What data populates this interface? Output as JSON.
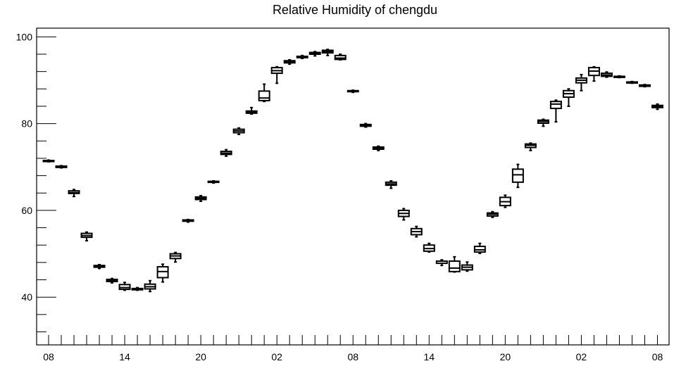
{
  "chart_data": {
    "type": "boxplot",
    "title": "Relative Humidity of chengdu",
    "xlabel": "",
    "ylabel": "",
    "ylim": [
      29,
      102
    ],
    "y_ticks": [
      40,
      60,
      80,
      100
    ],
    "x_tick_labels": [
      "08",
      "14",
      "20",
      "02",
      "08",
      "14",
      "20",
      "02",
      "08"
    ],
    "x_tick_positions": [
      0,
      6,
      12,
      18,
      24,
      30,
      36,
      42,
      48
    ],
    "grid": false,
    "colors": {
      "box": "#000000",
      "axis": "#000000",
      "background": "#ffffff"
    },
    "boxes": [
      {
        "x": 0,
        "min": 71.2,
        "q1": 71.3,
        "median": 71.4,
        "q3": 71.5,
        "max": 71.6
      },
      {
        "x": 1,
        "min": 69.8,
        "q1": 69.9,
        "median": 70.0,
        "q3": 70.2,
        "max": 70.3
      },
      {
        "x": 2,
        "min": 63.2,
        "q1": 63.9,
        "median": 64.1,
        "q3": 64.5,
        "max": 64.8
      },
      {
        "x": 3,
        "min": 53.0,
        "q1": 53.8,
        "median": 54.2,
        "q3": 54.7,
        "max": 55.0
      },
      {
        "x": 4,
        "min": 46.6,
        "q1": 46.9,
        "median": 47.1,
        "q3": 47.3,
        "max": 47.5
      },
      {
        "x": 5,
        "min": 43.3,
        "q1": 43.6,
        "median": 43.9,
        "q3": 44.1,
        "max": 44.3
      },
      {
        "x": 6,
        "min": 41.6,
        "q1": 41.8,
        "median": 42.2,
        "q3": 42.9,
        "max": 43.4
      },
      {
        "x": 7,
        "min": 41.6,
        "q1": 41.7,
        "median": 41.8,
        "q3": 42.0,
        "max": 42.2
      },
      {
        "x": 8,
        "min": 41.3,
        "q1": 41.9,
        "median": 42.4,
        "q3": 43.0,
        "max": 43.8
      },
      {
        "x": 9,
        "min": 43.5,
        "q1": 44.5,
        "median": 45.9,
        "q3": 47.0,
        "max": 47.6
      },
      {
        "x": 10,
        "min": 48.1,
        "q1": 48.9,
        "median": 49.5,
        "q3": 50.0,
        "max": 50.3
      },
      {
        "x": 11,
        "min": 57.3,
        "q1": 57.5,
        "median": 57.6,
        "q3": 57.8,
        "max": 57.9
      },
      {
        "x": 12,
        "min": 62.1,
        "q1": 62.5,
        "median": 62.8,
        "q3": 63.1,
        "max": 63.4
      },
      {
        "x": 13,
        "min": 66.3,
        "q1": 66.5,
        "median": 66.6,
        "q3": 66.7,
        "max": 66.8
      },
      {
        "x": 14,
        "min": 72.5,
        "q1": 72.9,
        "median": 73.2,
        "q3": 73.6,
        "max": 74.0
      },
      {
        "x": 15,
        "min": 77.5,
        "q1": 77.9,
        "median": 78.3,
        "q3": 78.7,
        "max": 79.0
      },
      {
        "x": 16,
        "min": 82.2,
        "q1": 82.4,
        "median": 82.6,
        "q3": 82.9,
        "max": 83.7
      },
      {
        "x": 17,
        "min": 85.1,
        "q1": 85.3,
        "median": 85.9,
        "q3": 87.5,
        "max": 89.1
      },
      {
        "x": 18,
        "min": 89.3,
        "q1": 91.6,
        "median": 92.2,
        "q3": 92.9,
        "max": 93.1
      },
      {
        "x": 19,
        "min": 93.7,
        "q1": 94.0,
        "median": 94.2,
        "q3": 94.5,
        "max": 94.7
      },
      {
        "x": 20,
        "min": 95.0,
        "q1": 95.2,
        "median": 95.4,
        "q3": 95.5,
        "max": 95.7
      },
      {
        "x": 21,
        "min": 95.6,
        "q1": 96.0,
        "median": 96.2,
        "q3": 96.4,
        "max": 96.6
      },
      {
        "x": 22,
        "min": 95.7,
        "q1": 96.3,
        "median": 96.6,
        "q3": 96.9,
        "max": 97.1
      },
      {
        "x": 23,
        "min": 94.7,
        "q1": 94.8,
        "median": 95.1,
        "q3": 95.7,
        "max": 96.0
      },
      {
        "x": 24,
        "min": 87.2,
        "q1": 87.4,
        "median": 87.5,
        "q3": 87.6,
        "max": 87.7
      },
      {
        "x": 25,
        "min": 79.2,
        "q1": 79.4,
        "median": 79.6,
        "q3": 79.8,
        "max": 80.0
      },
      {
        "x": 26,
        "min": 73.8,
        "q1": 74.1,
        "median": 74.4,
        "q3": 74.6,
        "max": 74.8
      },
      {
        "x": 27,
        "min": 65.1,
        "q1": 65.8,
        "median": 66.1,
        "q3": 66.5,
        "max": 66.8
      },
      {
        "x": 28,
        "min": 57.8,
        "q1": 58.6,
        "median": 59.3,
        "q3": 60.0,
        "max": 60.4
      },
      {
        "x": 29,
        "min": 53.9,
        "q1": 54.4,
        "median": 55.1,
        "q3": 55.8,
        "max": 56.3
      },
      {
        "x": 30,
        "min": 50.4,
        "q1": 50.6,
        "median": 51.2,
        "q3": 52.0,
        "max": 52.4
      },
      {
        "x": 31,
        "min": 47.3,
        "q1": 47.8,
        "median": 48.3,
        "q3": 48.3,
        "max": 48.6
      },
      {
        "x": 32,
        "min": 45.8,
        "q1": 45.9,
        "median": 46.7,
        "q3": 48.3,
        "max": 49.3
      },
      {
        "x": 33,
        "min": 46.0,
        "q1": 46.3,
        "median": 46.9,
        "q3": 47.4,
        "max": 48.1
      },
      {
        "x": 34,
        "min": 50.1,
        "q1": 50.4,
        "median": 50.9,
        "q3": 51.7,
        "max": 52.4
      },
      {
        "x": 35,
        "min": 58.4,
        "q1": 58.7,
        "median": 59.1,
        "q3": 59.4,
        "max": 59.7
      },
      {
        "x": 36,
        "min": 60.7,
        "q1": 61.1,
        "median": 62.0,
        "q3": 63.0,
        "max": 63.5
      },
      {
        "x": 37,
        "min": 65.3,
        "q1": 66.5,
        "median": 68.2,
        "q3": 69.5,
        "max": 70.6
      },
      {
        "x": 38,
        "min": 73.8,
        "q1": 74.5,
        "median": 75.0,
        "q3": 75.3,
        "max": 75.5
      },
      {
        "x": 39,
        "min": 79.4,
        "q1": 80.1,
        "median": 80.5,
        "q3": 80.8,
        "max": 81.0
      },
      {
        "x": 40,
        "min": 80.4,
        "q1": 83.5,
        "median": 84.5,
        "q3": 85.1,
        "max": 85.4
      },
      {
        "x": 41,
        "min": 84.0,
        "q1": 86.1,
        "median": 86.9,
        "q3": 87.6,
        "max": 88.0
      },
      {
        "x": 42,
        "min": 87.6,
        "q1": 89.4,
        "median": 90.0,
        "q3": 90.5,
        "max": 91.3
      },
      {
        "x": 43,
        "min": 89.8,
        "q1": 91.1,
        "median": 92.1,
        "q3": 92.9,
        "max": 93.1
      },
      {
        "x": 44,
        "min": 90.7,
        "q1": 90.9,
        "median": 91.2,
        "q3": 91.6,
        "max": 91.9
      },
      {
        "x": 45,
        "min": 90.6,
        "q1": 90.7,
        "median": 90.8,
        "q3": 90.9,
        "max": 91.0
      },
      {
        "x": 46,
        "min": 89.3,
        "q1": 89.4,
        "median": 89.5,
        "q3": 89.6,
        "max": 89.7
      },
      {
        "x": 47,
        "min": 88.5,
        "q1": 88.6,
        "median": 88.8,
        "q3": 88.9,
        "max": 89.0
      },
      {
        "x": 48,
        "min": 83.3,
        "q1": 83.7,
        "median": 84.0,
        "q3": 84.2,
        "max": 84.5
      }
    ]
  }
}
